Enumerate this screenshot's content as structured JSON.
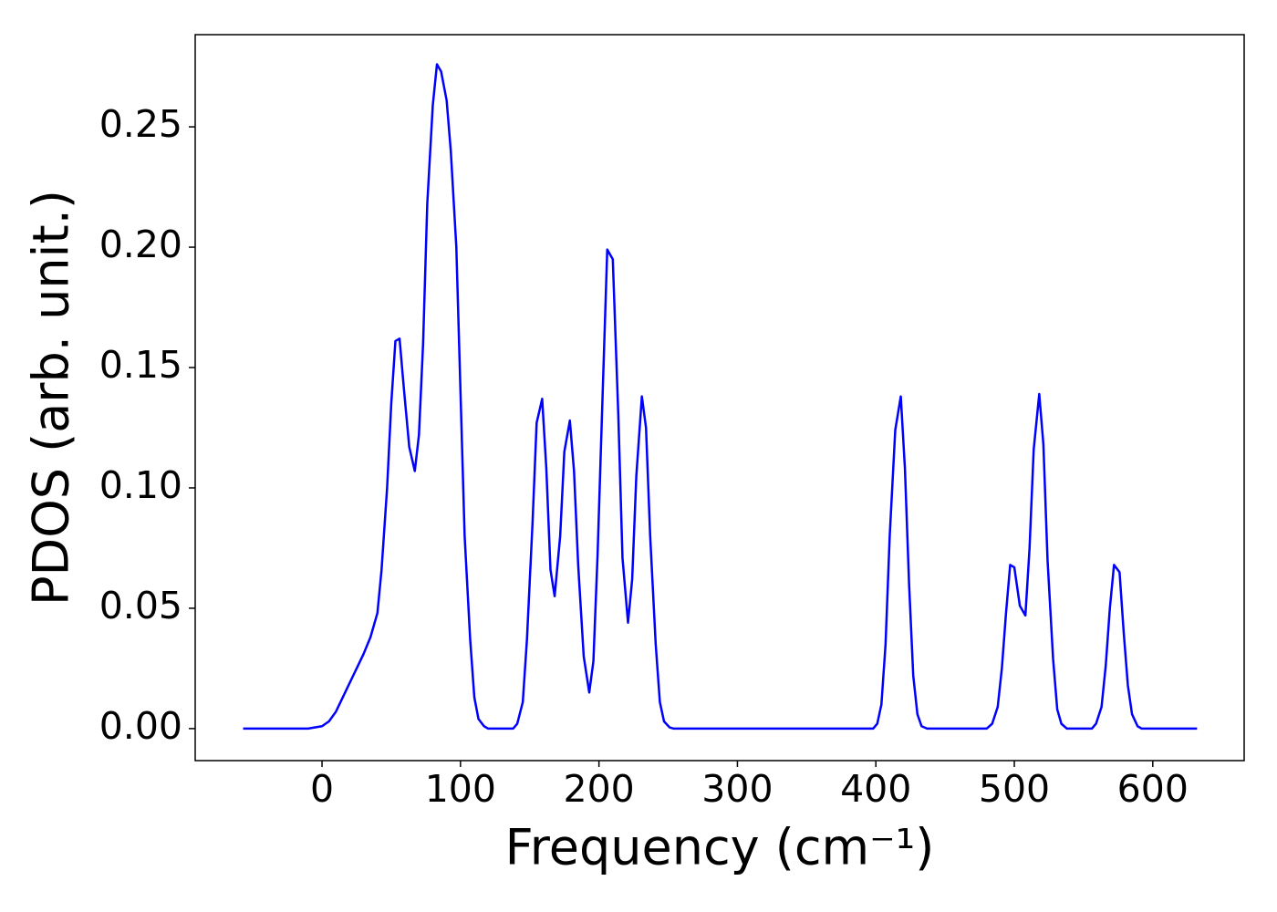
{
  "chart_data": {
    "type": "line",
    "xlabel": "Frequency (cm⁻¹)",
    "ylabel": "PDOS (arb. unit.)",
    "x": [
      -57,
      -10,
      0,
      5,
      10,
      15,
      20,
      25,
      30,
      35,
      40,
      43,
      47,
      50,
      53,
      56,
      59,
      63,
      67,
      70,
      73,
      76,
      80,
      83,
      86,
      90,
      93,
      97,
      100,
      103,
      107,
      110,
      113,
      117,
      120,
      138,
      141,
      145,
      148,
      152,
      155,
      159,
      162,
      165,
      168,
      172,
      175,
      179,
      182,
      185,
      189,
      193,
      196,
      199,
      203,
      206,
      210,
      214,
      217,
      221,
      224,
      227,
      231,
      234,
      237,
      241,
      244,
      247,
      251,
      254,
      398,
      401,
      404,
      407,
      410,
      414,
      418,
      421,
      424,
      427,
      430,
      433,
      437,
      480,
      484,
      488,
      491,
      494,
      497,
      500,
      504,
      508,
      511,
      514,
      518,
      521,
      524,
      528,
      531,
      534,
      538,
      556,
      559,
      563,
      566,
      569,
      572,
      576,
      579,
      582,
      585,
      589,
      592,
      632
    ],
    "series": [
      {
        "name": "PDOS",
        "color": "#0000ff",
        "values": [
          0,
          0,
          0.001,
          0.003,
          0.007,
          0.013,
          0.019,
          0.025,
          0.031,
          0.038,
          0.048,
          0.066,
          0.1,
          0.135,
          0.161,
          0.162,
          0.142,
          0.117,
          0.107,
          0.122,
          0.16,
          0.218,
          0.259,
          0.276,
          0.273,
          0.261,
          0.24,
          0.2,
          0.14,
          0.08,
          0.037,
          0.013,
          0.004,
          0.001,
          0,
          0,
          0.002,
          0.011,
          0.037,
          0.085,
          0.127,
          0.137,
          0.108,
          0.066,
          0.055,
          0.08,
          0.115,
          0.128,
          0.107,
          0.068,
          0.03,
          0.015,
          0.028,
          0.072,
          0.145,
          0.199,
          0.195,
          0.13,
          0.071,
          0.044,
          0.062,
          0.105,
          0.138,
          0.125,
          0.08,
          0.035,
          0.011,
          0.003,
          0.0005,
          0,
          0,
          0.002,
          0.01,
          0.035,
          0.08,
          0.124,
          0.138,
          0.108,
          0.06,
          0.022,
          0.006,
          0.001,
          0,
          0,
          0.002,
          0.009,
          0.025,
          0.048,
          0.068,
          0.067,
          0.051,
          0.047,
          0.075,
          0.116,
          0.139,
          0.118,
          0.07,
          0.029,
          0.008,
          0.002,
          0,
          0,
          0.002,
          0.009,
          0.026,
          0.05,
          0.068,
          0.065,
          0.04,
          0.018,
          0.006,
          0.001,
          0,
          0
        ]
      }
    ],
    "xlim": [
      -91.6,
      666
    ],
    "ylim": [
      -0.0133,
      0.2883
    ],
    "xticks": [
      0,
      100,
      200,
      300,
      400,
      500,
      600
    ],
    "yticks": [
      {
        "value": 0,
        "label": "0.00"
      },
      {
        "value": 0.05,
        "label": "0.05"
      },
      {
        "value": 0.1,
        "label": "0.10"
      },
      {
        "value": 0.15,
        "label": "0.15"
      },
      {
        "value": 0.2,
        "label": "0.20"
      },
      {
        "value": 0.25,
        "label": "0.25"
      }
    ],
    "grid": false
  }
}
